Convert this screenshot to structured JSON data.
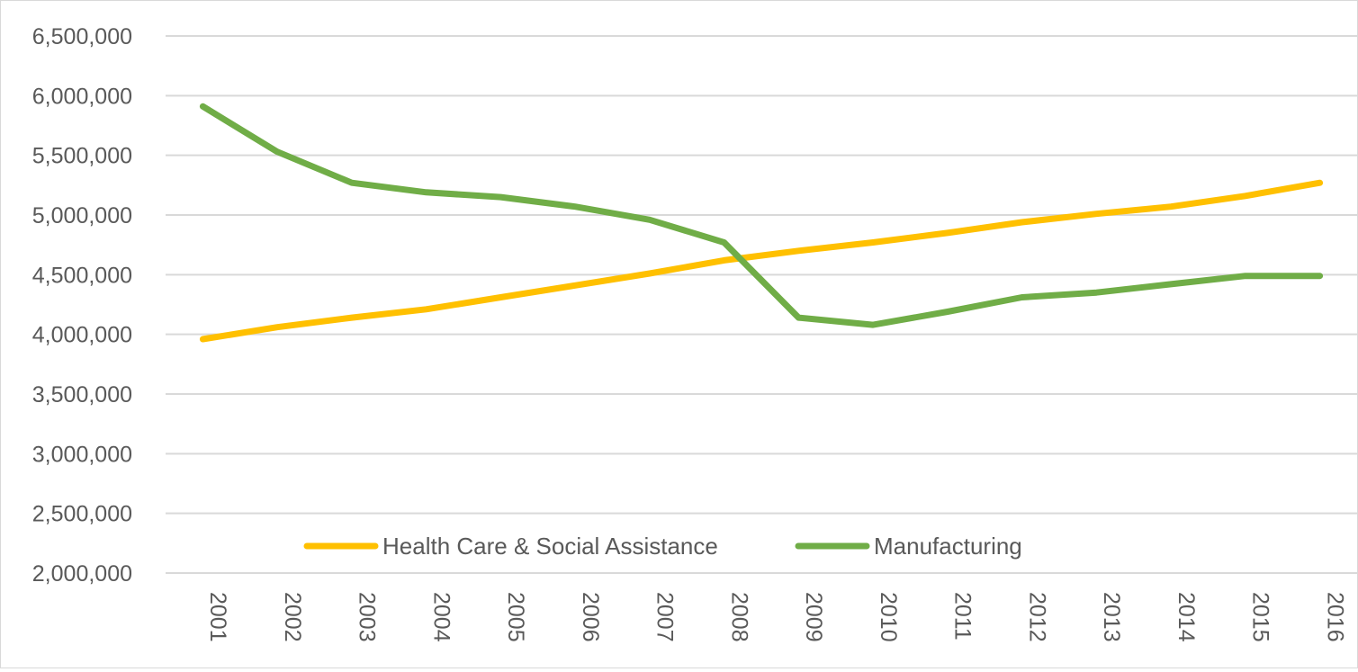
{
  "chart_data": {
    "type": "line",
    "title": "",
    "xlabel": "",
    "ylabel": "",
    "categories": [
      "2001",
      "2002",
      "2003",
      "2004",
      "2005",
      "2006",
      "2007",
      "2008",
      "2009",
      "2010",
      "2011",
      "2012",
      "2013",
      "2014",
      "2015",
      "2016"
    ],
    "ylim": [
      2000000,
      6500000
    ],
    "y_ticks": [
      2000000,
      2500000,
      3000000,
      3500000,
      4000000,
      4500000,
      5000000,
      5500000,
      6000000,
      6500000
    ],
    "y_tick_labels": [
      "2,000,000",
      "2,500,000",
      "3,000,000",
      "3,500,000",
      "4,000,000",
      "4,500,000",
      "5,000,000",
      "5,500,000",
      "6,000,000",
      "6,500,000"
    ],
    "grid": true,
    "legend_position": "bottom",
    "series": [
      {
        "name": "Health Care & Social Assistance",
        "color": "#FFC000",
        "values": [
          3960000,
          4060000,
          4140000,
          4210000,
          4310000,
          4410000,
          4510000,
          4620000,
          4700000,
          4770000,
          4850000,
          4940000,
          5010000,
          5070000,
          5160000,
          5270000
        ]
      },
      {
        "name": "Manufacturing",
        "color": "#70AD47",
        "values": [
          5910000,
          5530000,
          5270000,
          5190000,
          5150000,
          5070000,
          4960000,
          4770000,
          4140000,
          4080000,
          4190000,
          4310000,
          4350000,
          4420000,
          4490000,
          4490000
        ]
      }
    ]
  },
  "colors": {
    "gridline": "#d9d9d9",
    "tick_text": "#595959",
    "frame": "#d9d9d9"
  }
}
